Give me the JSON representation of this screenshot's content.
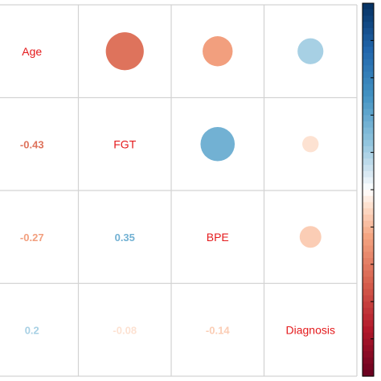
{
  "chart_data": {
    "type": "heatmap",
    "title": "",
    "variables": [
      "Age",
      "FGT",
      "BPE",
      "Diagnosis"
    ],
    "matrix": [
      [
        1.0,
        -0.43,
        -0.27,
        0.2
      ],
      [
        -0.43,
        1.0,
        0.35,
        -0.08
      ],
      [
        -0.27,
        0.35,
        1.0,
        -0.14
      ],
      [
        0.2,
        -0.08,
        -0.14,
        1.0
      ]
    ],
    "lower_labels": [
      {
        "row": 1,
        "col": 0,
        "text": "-0.43",
        "value": -0.43
      },
      {
        "row": 2,
        "col": 0,
        "text": "-0.27",
        "value": -0.27
      },
      {
        "row": 2,
        "col": 1,
        "text": "0.35",
        "value": 0.35
      },
      {
        "row": 3,
        "col": 0,
        "text": "0.2",
        "value": 0.2
      },
      {
        "row": 3,
        "col": 1,
        "text": "-0.08",
        "value": -0.08
      },
      {
        "row": 3,
        "col": 2,
        "text": "-0.14",
        "value": -0.14
      }
    ],
    "upper_display": "circle",
    "lower_display": "number",
    "color_scale": {
      "min": -1,
      "max": 1,
      "low": "#67001F",
      "mid": "#FFFFFF",
      "high": "#053061"
    },
    "colorbar": "right",
    "grid": true
  },
  "colors": {
    "diag_label": "#E41A1C",
    "grid": "#d3d3d3",
    "colorbar_frame": "#000000"
  }
}
